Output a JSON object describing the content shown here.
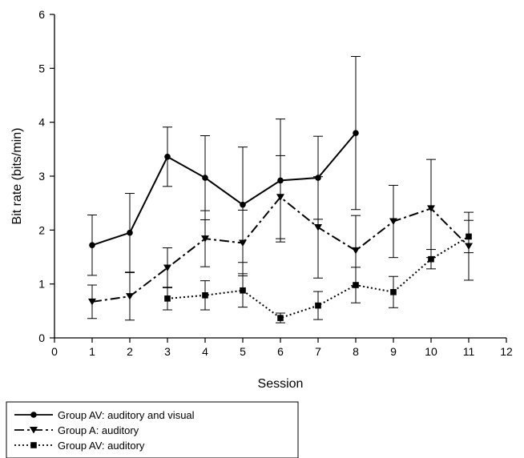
{
  "chart_data": {
    "type": "line",
    "xlabel": "Session",
    "ylabel": "Bit rate (bits/min)",
    "xlim": [
      0,
      12
    ],
    "ylim": [
      0,
      6
    ],
    "x_ticks": [
      "0",
      "1",
      "2",
      "3",
      "4",
      "5",
      "6",
      "7",
      "8",
      "9",
      "10",
      "11",
      "12"
    ],
    "y_ticks": [
      "0",
      "1",
      "2",
      "3",
      "4",
      "5",
      "6"
    ],
    "grid": false,
    "legend_position": "bottom-left",
    "series": [
      {
        "name": "Group AV: auditory and visual",
        "marker": "circle",
        "line_style": "solid",
        "x": [
          1,
          2,
          3,
          4,
          5,
          6,
          7,
          8
        ],
        "y": [
          1.72,
          1.95,
          3.36,
          2.97,
          2.47,
          2.92,
          2.97,
          3.8
        ],
        "err": [
          0.56,
          0.73,
          0.55,
          0.78,
          1.07,
          1.14,
          0.77,
          1.42
        ]
      },
      {
        "name": "Group A: auditory",
        "marker": "triangle-down",
        "line_style": "dashdot",
        "x": [
          1,
          2,
          3,
          4,
          5,
          6,
          7,
          8,
          9,
          10,
          11
        ],
        "y": [
          0.67,
          0.77,
          1.3,
          1.84,
          1.76,
          2.61,
          2.05,
          1.62,
          2.16,
          2.4,
          1.7
        ],
        "err": [
          0.31,
          0.44,
          0.37,
          0.52,
          0.61,
          0.77,
          0.94,
          0.65,
          0.67,
          0.91,
          0.63
        ]
      },
      {
        "name": "Group AV: auditory",
        "marker": "square",
        "line_style": "dotted",
        "x": [
          3,
          4,
          5,
          6,
          7,
          8,
          9,
          10,
          11
        ],
        "y": [
          0.73,
          0.79,
          0.88,
          0.37,
          0.6,
          0.98,
          0.85,
          1.46,
          1.88
        ],
        "err": [
          0.21,
          0.27,
          0.31,
          0.09,
          0.26,
          0.33,
          0.29,
          0.18,
          0.3
        ]
      }
    ]
  }
}
